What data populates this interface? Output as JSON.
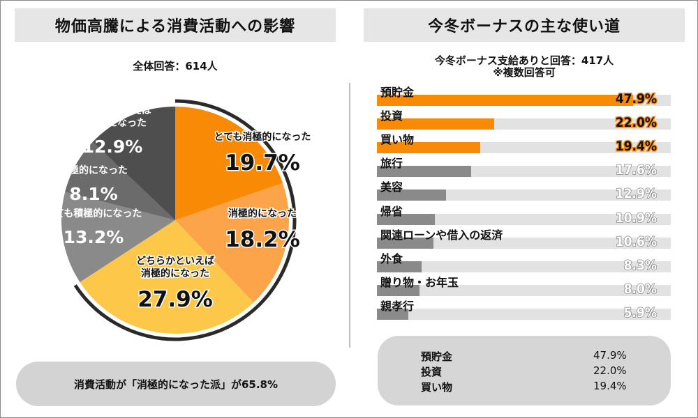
{
  "left": {
    "title": "物価高騰による消費活動への影響",
    "subtitle": "全体回答：614人",
    "note": "消費活動が「消極的になった派」が65.8%"
  },
  "right": {
    "title": "今冬ボーナスの主な使い道",
    "subtitle_line1": "今冬ボーナス支給ありと回答：417人",
    "subtitle_line2": "※複数回答可"
  },
  "colors": {
    "orange": "#f98a06",
    "light_orange": "#fca44a",
    "yellow": "#fdc84a",
    "gray": "#8a8a8a",
    "dark_gray": "#6b6b6b",
    "darker_gray": "#4e4e4e",
    "track": "#e2e2e2"
  },
  "chart_data": [
    {
      "type": "pie",
      "title": "物価高騰による消費活動への影響",
      "slices": [
        {
          "label_lines": [
            "とても消極的になった"
          ],
          "value": 19.7,
          "value_label": "19.7%",
          "color": "#f98a06"
        },
        {
          "label_lines": [
            "消極的になった"
          ],
          "value": 18.2,
          "value_label": "18.2%",
          "color": "#fca44a"
        },
        {
          "label_lines": [
            "どちらかといえば",
            "消極的になった"
          ],
          "value": 27.9,
          "value_label": "27.9%",
          "color": "#fdc84a"
        },
        {
          "label_lines": [
            "とても積極的になった"
          ],
          "value": 13.2,
          "value_label": "13.2%",
          "color": "#8a8a8a"
        },
        {
          "label_lines": [
            "積極的になった"
          ],
          "value": 8.1,
          "value_label": "8.1%",
          "color": "#6b6b6b"
        },
        {
          "label_lines": [
            "どちらかといえば",
            "積極的になった"
          ],
          "value": 12.9,
          "value_label": "12.9%",
          "color": "#4e4e4e"
        }
      ]
    },
    {
      "type": "bar",
      "orientation": "horizontal",
      "title": "今冬ボーナスの主な使い道",
      "xlim": [
        0,
        55
      ],
      "categories": [
        "預貯金",
        "投資",
        "買い物",
        "旅行",
        "美容",
        "帰省",
        "関連ローンや借入の返済",
        "外食",
        "贈り物・お年玉",
        "親孝行"
      ],
      "values": [
        47.9,
        22.0,
        19.4,
        17.6,
        12.9,
        10.9,
        10.6,
        8.3,
        8.0,
        5.9
      ],
      "value_labels": [
        "47.9%",
        "22.0%",
        "19.4%",
        "17.6%",
        "12.9%",
        "10.9%",
        "10.6%",
        "8.3%",
        "8.0%",
        "5.9%"
      ],
      "highlight_top": 3
    }
  ],
  "summary": [
    {
      "label": "預貯金",
      "value": "47.9%"
    },
    {
      "label": "投資",
      "value": "22.0%"
    },
    {
      "label": "買い物",
      "value": "19.4%"
    }
  ]
}
